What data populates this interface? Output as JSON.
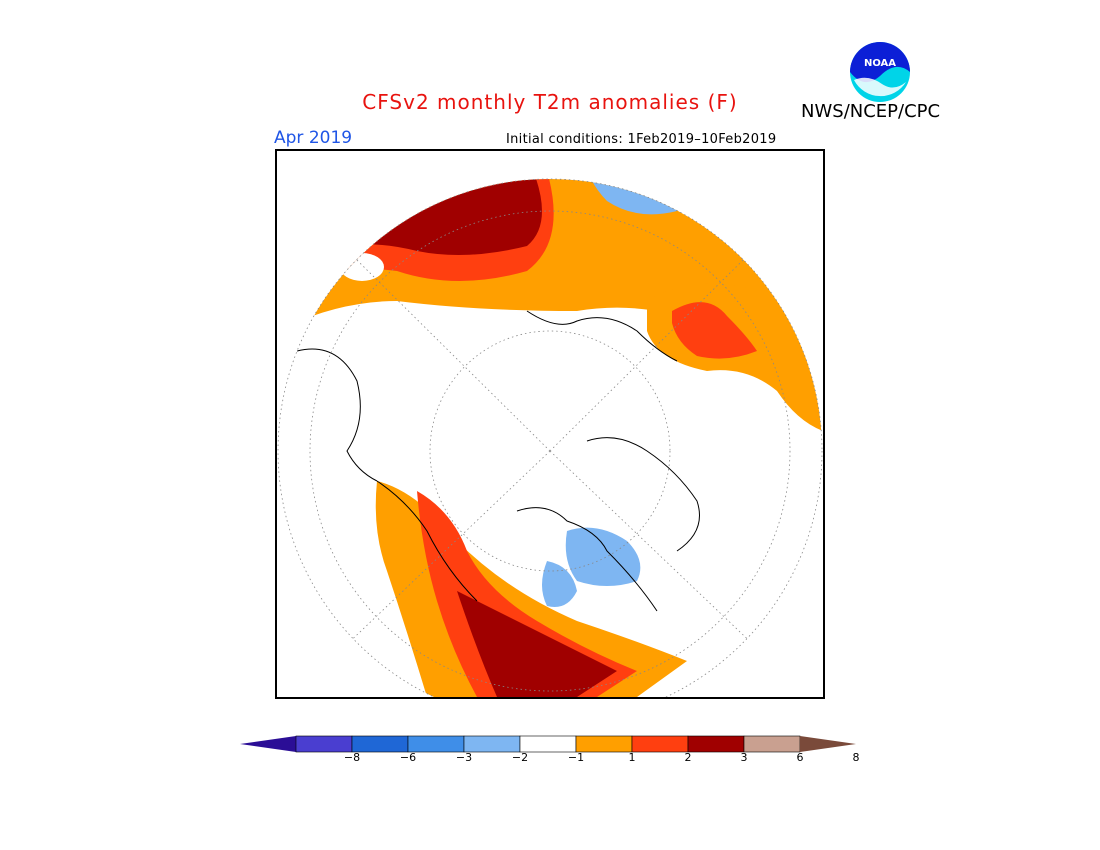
{
  "header": {
    "title": "CFSv2 monthly T2m anomalies (F)",
    "org": "NWS/NCEP/CPC",
    "logo_text": "NOAA",
    "month": "Apr 2019",
    "initial_conditions": "Initial conditions: 1Feb2019–10Feb2019"
  },
  "colorbar": {
    "ticks": [
      "−8",
      "−6",
      "−3",
      "−2",
      "−1",
      "1",
      "2",
      "3",
      "6",
      "8"
    ],
    "colors": [
      "#2b0e96",
      "#4a3ed0",
      "#1f67d6",
      "#3f8ee8",
      "#7eb6f2",
      "#ffffff",
      "#ff9f00",
      "#ff3f10",
      "#a00000",
      "#c9a090",
      "#7a4a3a"
    ]
  },
  "map": {
    "projection": "north-polar-stereographic",
    "colors": {
      "warm1": "#ff9f00",
      "warm2": "#ff3f10",
      "warm3": "#a00000",
      "warm4": "#c9a090",
      "cool1": "#7eb6f2",
      "cool2": "#3f8ee8"
    }
  }
}
